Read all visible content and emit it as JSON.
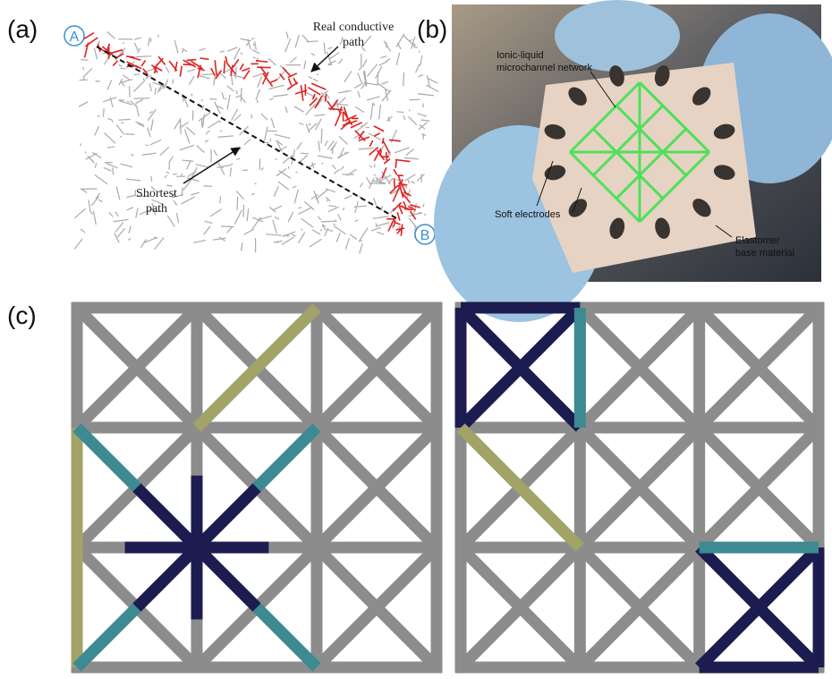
{
  "panel_a": {
    "label": "(a)",
    "start_marker": "A",
    "end_marker": "B",
    "real_path_label": [
      "Real conductive",
      "path"
    ],
    "shortest_path_label": [
      "Shortest",
      "path"
    ]
  },
  "panel_b": {
    "label": "(b)",
    "network_label": [
      "Ionic-liquid",
      "microchannel network"
    ],
    "electrodes_label": "Soft electrodes",
    "base_label": [
      "Elastomer",
      "base material"
    ]
  },
  "panel_c": {
    "label": "(c)"
  }
}
